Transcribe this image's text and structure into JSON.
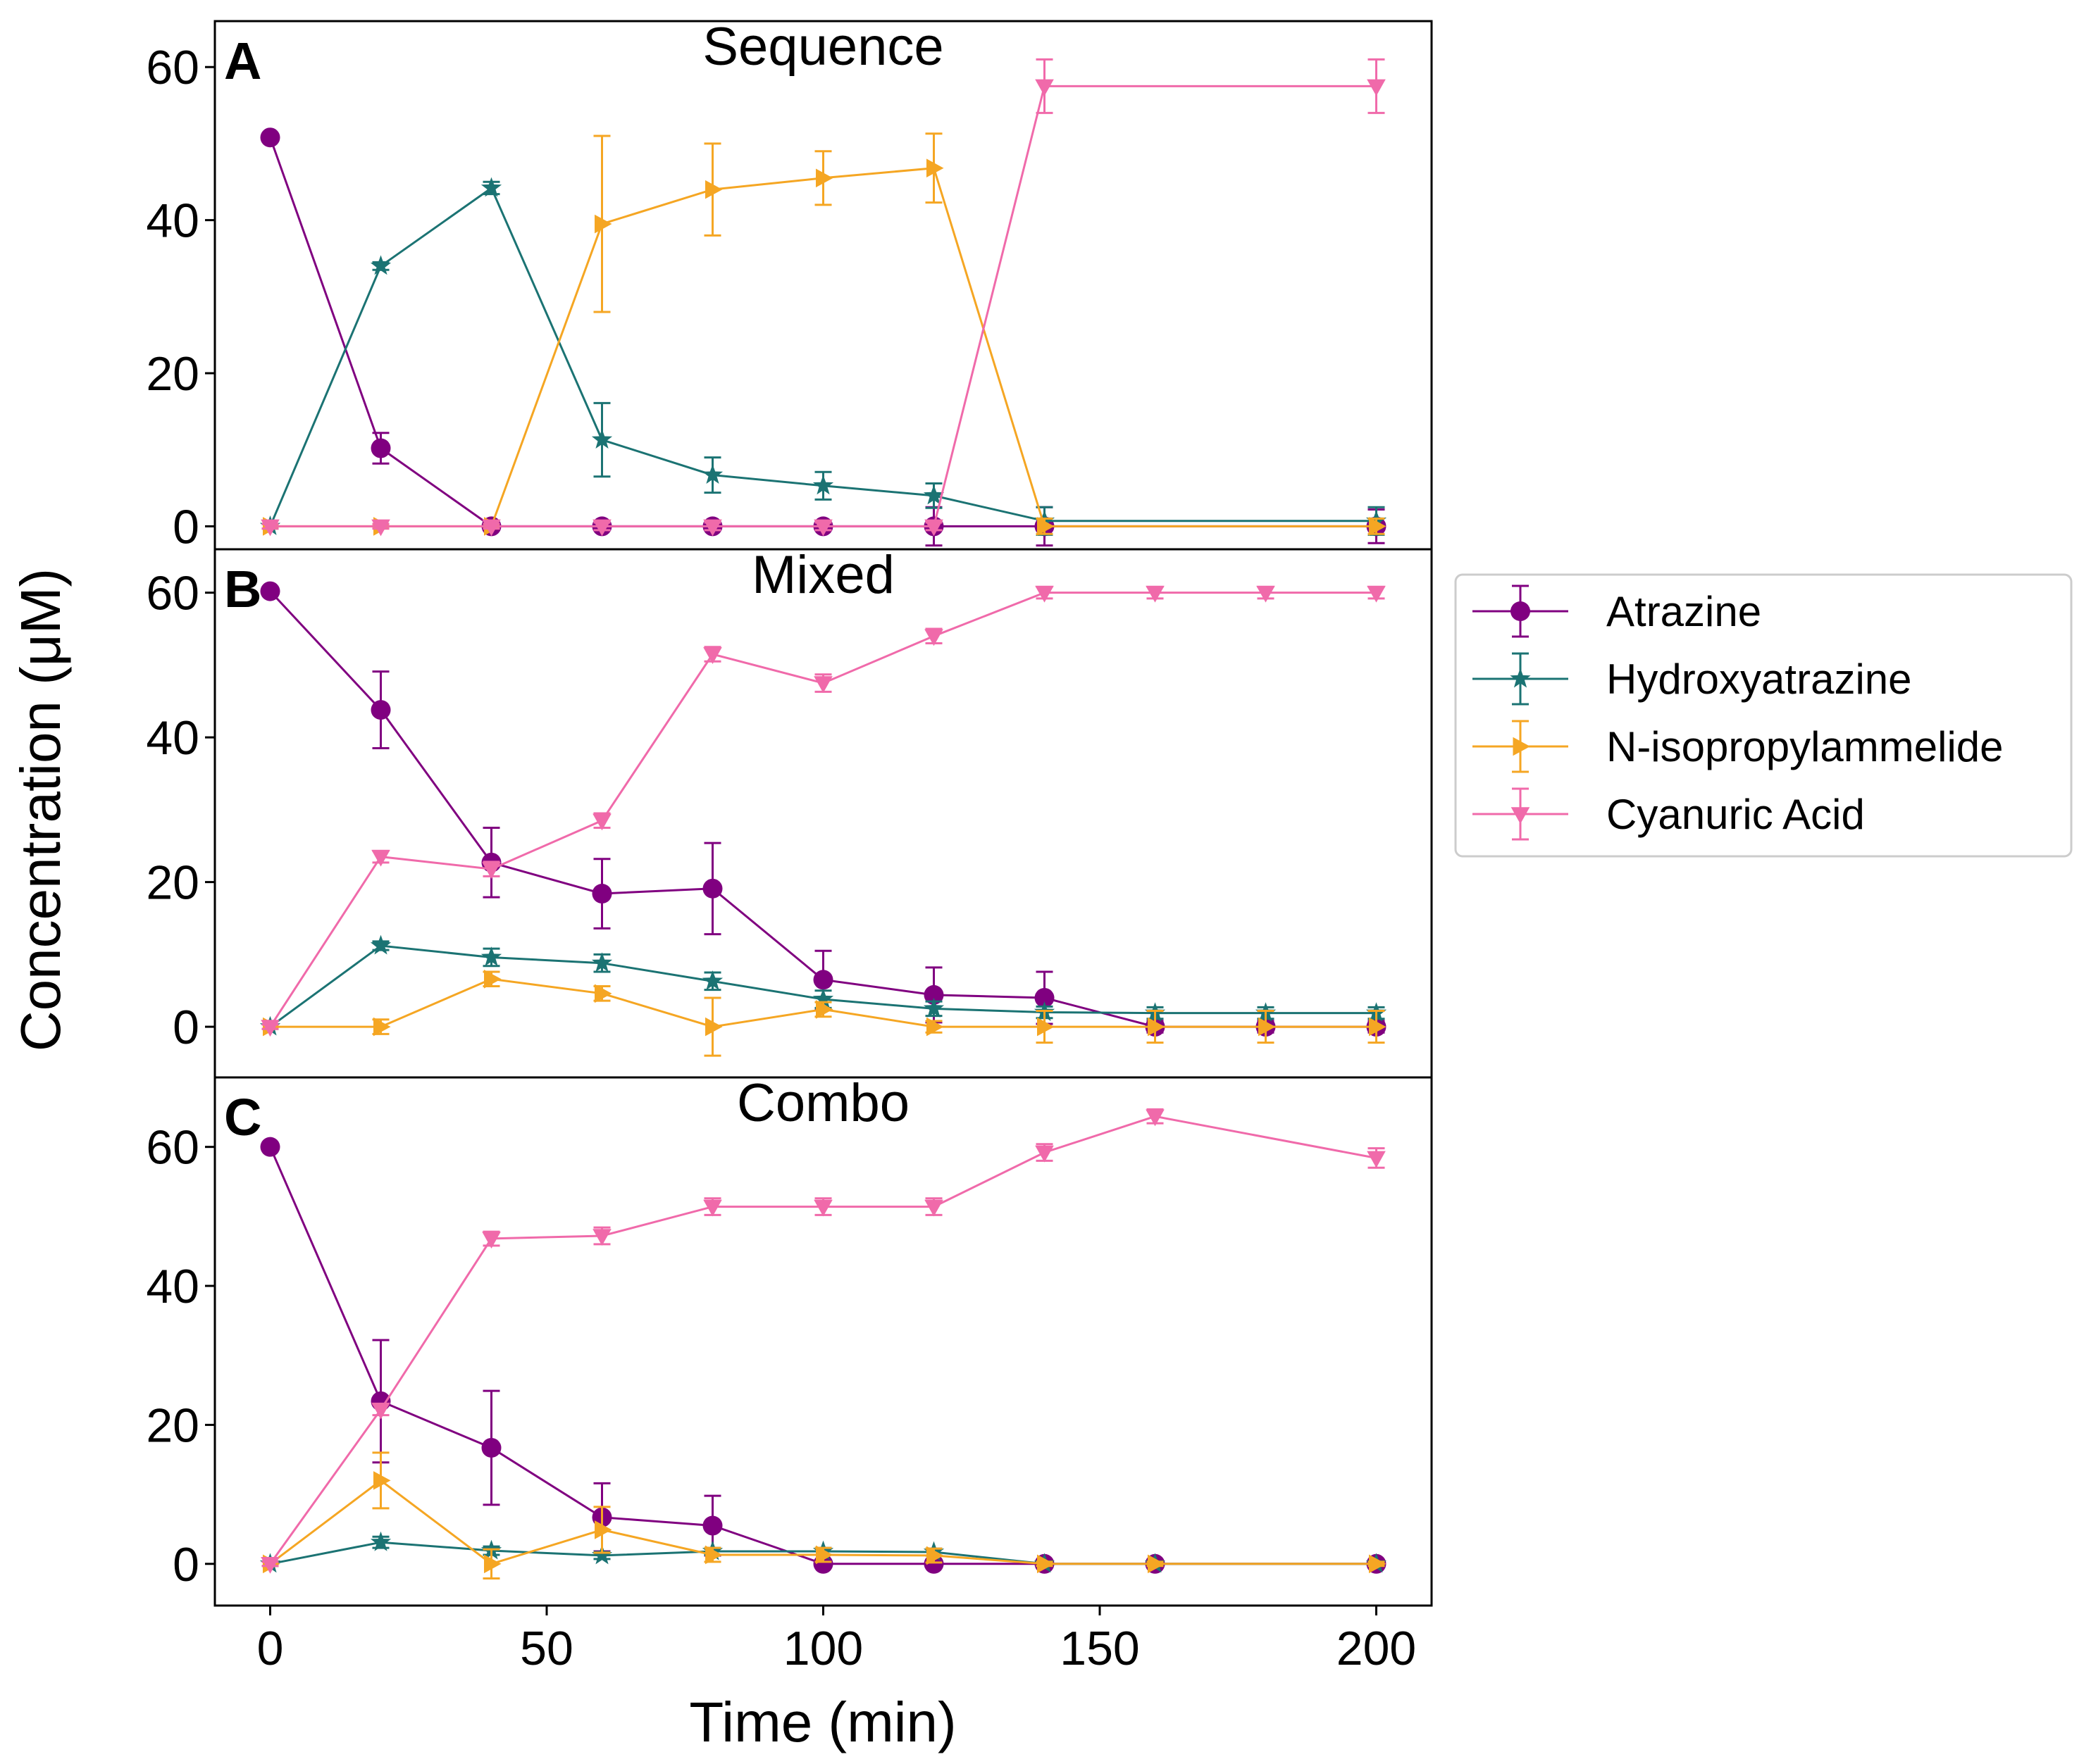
{
  "chart_data": {
    "type": "line",
    "xlabel": "Time (min)",
    "ylabel": "Concentration (μM)",
    "xlim": [
      -10,
      210
    ],
    "xticks": [
      0,
      50,
      100,
      150,
      200
    ],
    "yticks": [
      0,
      20,
      40,
      60
    ],
    "legend": {
      "placement": "right",
      "entries": [
        {
          "name": "Atrazine",
          "color": "#800080",
          "marker": "circle"
        },
        {
          "name": "Hydroxyatrazine",
          "color": "#1b7373",
          "marker": "star"
        },
        {
          "name": "N-isopropylammelide",
          "color": "#f5a623",
          "marker": "triangle-right"
        },
        {
          "name": "Cyanuric Acid",
          "color": "#f06aaa",
          "marker": "triangle-down"
        }
      ]
    },
    "panels": [
      {
        "letter": "A",
        "title": "Sequence",
        "ylim": [
          -3,
          66
        ],
        "series": [
          {
            "name": "Atrazine",
            "points": [
              [
                0,
                50.8,
                0.5
              ],
              [
                20,
                10.2,
                2.0
              ],
              [
                40,
                0,
                0.3
              ],
              [
                60,
                0,
                0.5
              ],
              [
                80,
                0,
                0.5
              ],
              [
                100,
                0,
                0.5
              ],
              [
                120,
                0,
                2.5
              ],
              [
                140,
                0,
                2.5
              ],
              [
                200,
                0,
                2.2
              ]
            ]
          },
          {
            "name": "Hydroxyatrazine",
            "points": [
              [
                0,
                0,
                0.3
              ],
              [
                20,
                34.0,
                0.5
              ],
              [
                40,
                44.2,
                0.8
              ],
              [
                60,
                11.3,
                4.8
              ],
              [
                80,
                6.7,
                2.3
              ],
              [
                100,
                5.3,
                1.8
              ],
              [
                120,
                4.0,
                1.6
              ],
              [
                140,
                0.7,
                1.8
              ],
              [
                200,
                0.7,
                1.8
              ]
            ]
          },
          {
            "name": "N-isopropylammelide",
            "points": [
              [
                0,
                0,
                0.3
              ],
              [
                20,
                0,
                0.3
              ],
              [
                40,
                0,
                0.3
              ],
              [
                60,
                39.5,
                11.5
              ],
              [
                80,
                44.0,
                6.0
              ],
              [
                100,
                45.5,
                3.5
              ],
              [
                120,
                46.8,
                4.5
              ],
              [
                140,
                0,
                1.0
              ],
              [
                200,
                0,
                1.0
              ]
            ]
          },
          {
            "name": "Cyanuric Acid",
            "points": [
              [
                0,
                0,
                0.3
              ],
              [
                20,
                0,
                0.3
              ],
              [
                40,
                0,
                0.3
              ],
              [
                60,
                0,
                0.5
              ],
              [
                80,
                0,
                0.5
              ],
              [
                100,
                0,
                0.5
              ],
              [
                120,
                0,
                0.5
              ],
              [
                140,
                57.5,
                3.5
              ],
              [
                200,
                57.5,
                3.5
              ]
            ]
          }
        ]
      },
      {
        "letter": "B",
        "title": "Mixed",
        "ylim": [
          -7,
          66
        ],
        "series": [
          {
            "name": "Atrazine",
            "points": [
              [
                0,
                60.2,
                0.5
              ],
              [
                20,
                43.8,
                5.3
              ],
              [
                40,
                22.7,
                4.8
              ],
              [
                60,
                18.4,
                4.8
              ],
              [
                80,
                19.1,
                6.3
              ],
              [
                100,
                6.5,
                4.0
              ],
              [
                120,
                4.4,
                3.8
              ],
              [
                140,
                4.0,
                3.6
              ],
              [
                160,
                0,
                0.8
              ],
              [
                180,
                0,
                0.8
              ],
              [
                200,
                0,
                0.8
              ]
            ]
          },
          {
            "name": "Hydroxyatrazine",
            "points": [
              [
                0,
                0,
                0.3
              ],
              [
                20,
                11.2,
                0.6
              ],
              [
                40,
                9.6,
                1.2
              ],
              [
                60,
                8.8,
                1.2
              ],
              [
                80,
                6.3,
                1.2
              ],
              [
                100,
                3.8,
                1.2
              ],
              [
                120,
                2.5,
                1.0
              ],
              [
                140,
                2.0,
                0.8
              ],
              [
                160,
                1.9,
                0.8
              ],
              [
                180,
                1.9,
                0.8
              ],
              [
                200,
                1.9,
                0.8
              ]
            ]
          },
          {
            "name": "N-isopropylammelide",
            "points": [
              [
                0,
                0,
                0.3
              ],
              [
                20,
                0,
                1.0
              ],
              [
                40,
                6.6,
                1.0
              ],
              [
                60,
                4.6,
                1.0
              ],
              [
                80,
                0,
                4.0
              ],
              [
                100,
                2.4,
                1.0
              ],
              [
                120,
                0,
                0.8
              ],
              [
                140,
                0,
                2.2
              ],
              [
                160,
                0,
                2.2
              ],
              [
                180,
                0,
                2.2
              ],
              [
                200,
                0,
                2.2
              ]
            ]
          },
          {
            "name": "Cyanuric Acid",
            "points": [
              [
                0,
                0,
                0.3
              ],
              [
                20,
                23.5,
                0.8
              ],
              [
                40,
                21.8,
                1.0
              ],
              [
                60,
                28.5,
                1.0
              ],
              [
                80,
                51.5,
                1.0
              ],
              [
                100,
                47.5,
                1.2
              ],
              [
                120,
                54.0,
                1.0
              ],
              [
                140,
                60.0,
                0.8
              ],
              [
                160,
                60.0,
                0.8
              ],
              [
                180,
                60.0,
                0.8
              ],
              [
                200,
                60.0,
                0.8
              ]
            ]
          }
        ]
      },
      {
        "letter": "C",
        "title": "Combo",
        "ylim": [
          -6,
          70
        ],
        "series": [
          {
            "name": "Atrazine",
            "points": [
              [
                0,
                60.0,
                0.3
              ],
              [
                20,
                23.4,
                8.8
              ],
              [
                40,
                16.7,
                8.2
              ],
              [
                60,
                6.7,
                4.9
              ],
              [
                80,
                5.5,
                4.3
              ],
              [
                100,
                0,
                0.3
              ],
              [
                120,
                0,
                0.3
              ],
              [
                140,
                0,
                0.3
              ],
              [
                160,
                0,
                0.3
              ],
              [
                200,
                0,
                0.3
              ]
            ]
          },
          {
            "name": "Hydroxyatrazine",
            "points": [
              [
                0,
                0,
                0.3
              ],
              [
                20,
                3.1,
                0.8
              ],
              [
                40,
                1.9,
                0.6
              ],
              [
                60,
                1.2,
                0.5
              ],
              [
                80,
                1.8,
                0.5
              ],
              [
                100,
                1.8,
                0.5
              ],
              [
                120,
                1.7,
                0.5
              ],
              [
                140,
                0,
                0.3
              ],
              [
                160,
                0,
                0.3
              ],
              [
                200,
                0,
                0.3
              ]
            ]
          },
          {
            "name": "N-isopropylammelide",
            "points": [
              [
                0,
                0,
                0.3
              ],
              [
                20,
                12.0,
                4.0
              ],
              [
                40,
                0,
                2.1
              ],
              [
                60,
                4.9,
                3.3
              ],
              [
                80,
                1.3,
                1.0
              ],
              [
                100,
                1.3,
                1.0
              ],
              [
                120,
                1.2,
                1.0
              ],
              [
                140,
                0,
                0.3
              ],
              [
                160,
                0,
                0.3
              ],
              [
                200,
                0,
                0.3
              ]
            ]
          },
          {
            "name": "Cyanuric Acid",
            "points": [
              [
                0,
                0,
                0.3
              ],
              [
                20,
                22.2,
                0.8
              ],
              [
                40,
                46.8,
                1.0
              ],
              [
                60,
                47.2,
                1.2
              ],
              [
                80,
                51.4,
                1.2
              ],
              [
                100,
                51.4,
                1.2
              ],
              [
                120,
                51.4,
                1.2
              ],
              [
                140,
                59.2,
                1.2
              ],
              [
                160,
                64.4,
                1.0
              ],
              [
                200,
                58.4,
                1.4
              ]
            ]
          }
        ]
      }
    ]
  }
}
